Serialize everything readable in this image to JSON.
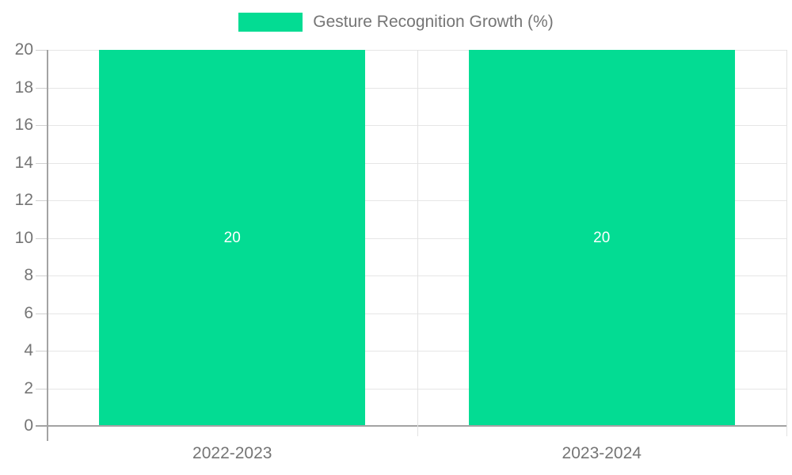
{
  "legend": {
    "label": "Gesture Recognition Growth (%)"
  },
  "chart_data": {
    "type": "bar",
    "categories": [
      "2022-2023",
      "2023-2024"
    ],
    "series": [
      {
        "name": "Gesture Recognition Growth (%)",
        "values": [
          20,
          20
        ]
      }
    ],
    "value_labels": [
      "20",
      "20"
    ],
    "title": "",
    "xlabel": "",
    "ylabel": "",
    "ylim": [
      0,
      20
    ],
    "ytick_step": 2,
    "ytick_labels": [
      "0",
      "2",
      "4",
      "6",
      "8",
      "10",
      "12",
      "14",
      "16",
      "18",
      "20"
    ],
    "grid": true,
    "legend_position": "top"
  },
  "colors": {
    "bar": "#03dc93",
    "grid": "#e6e6e6",
    "axis": "#a3a3a3",
    "text": "#757575",
    "value_label": "#ffffff"
  }
}
